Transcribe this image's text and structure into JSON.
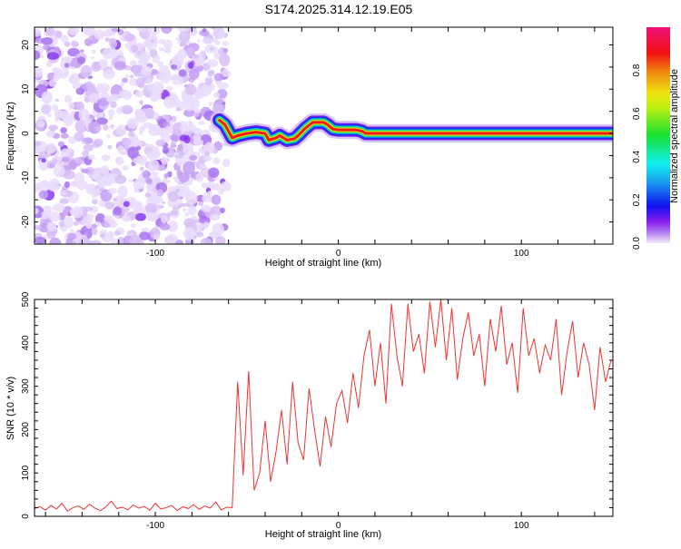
{
  "title": "S174.2025.314.12.19.E05",
  "chart_data": [
    {
      "type": "heatmap",
      "xlabel": "Height of straight line (km)",
      "ylabel": "Frequency (Hz)",
      "xlim": [
        -166,
        150
      ],
      "ylim": [
        -25,
        24
      ],
      "xticks": [
        -100,
        0,
        100
      ],
      "yticks": [
        -20,
        -10,
        0,
        10,
        20
      ],
      "noise_region_x": [
        -166,
        -64
      ],
      "ridge": {
        "x": [
          -65,
          -62,
          -58,
          -55,
          -50,
          -45,
          -40,
          -38,
          -34,
          -32,
          -28,
          -24,
          -22,
          -18,
          -14,
          -12,
          -8,
          -6,
          -3,
          0,
          5,
          10,
          13,
          15,
          20,
          150
        ],
        "freq": [
          3,
          2,
          -1,
          -0.5,
          0,
          0.3,
          0,
          -1.5,
          -1,
          -0.5,
          -1.5,
          -1.2,
          -0.5,
          1.2,
          2.5,
          2.5,
          2.5,
          2,
          1,
          0.8,
          0.8,
          0.8,
          0.5,
          0,
          0,
          0
        ]
      },
      "colorbar": {
        "label": "Normalized spectral amplitude",
        "range": [
          0,
          1
        ],
        "ticks": [
          "0.0",
          "0.2",
          "0.4",
          "0.6",
          "0.8"
        ]
      }
    },
    {
      "type": "line",
      "xlabel": "Height of straight line (km)",
      "ylabel": "SNR (10 * v/v)",
      "xlim": [
        -166,
        150
      ],
      "ylim": [
        0,
        500
      ],
      "xticks": [
        -100,
        0,
        100
      ],
      "yticks": [
        0,
        100,
        200,
        300,
        400,
        500
      ],
      "color": "#ee3333",
      "x_start": -166,
      "x_step": 3,
      "values": [
        18,
        22,
        14,
        25,
        17,
        30,
        12,
        20,
        24,
        16,
        28,
        19,
        13,
        22,
        35,
        18,
        21,
        15,
        26,
        19,
        23,
        14,
        30,
        17,
        20,
        25,
        13,
        22,
        18,
        27,
        16,
        24,
        19,
        33,
        15,
        21,
        20,
        310,
        95,
        335,
        60,
        100,
        220,
        80,
        150,
        245,
        120,
        310,
        170,
        130,
        295,
        200,
        115,
        230,
        160,
        260,
        290,
        215,
        330,
        250,
        370,
        430,
        300,
        400,
        260,
        490,
        370,
        300,
        490,
        380,
        420,
        330,
        495,
        390,
        500,
        360,
        480,
        315,
        410,
        470,
        370,
        420,
        300,
        455,
        380,
        485,
        350,
        400,
        285,
        480,
        370,
        410,
        330,
        395,
        360,
        455,
        280,
        380,
        450,
        320,
        400,
        350,
        245,
        390,
        310,
        360
      ]
    }
  ]
}
